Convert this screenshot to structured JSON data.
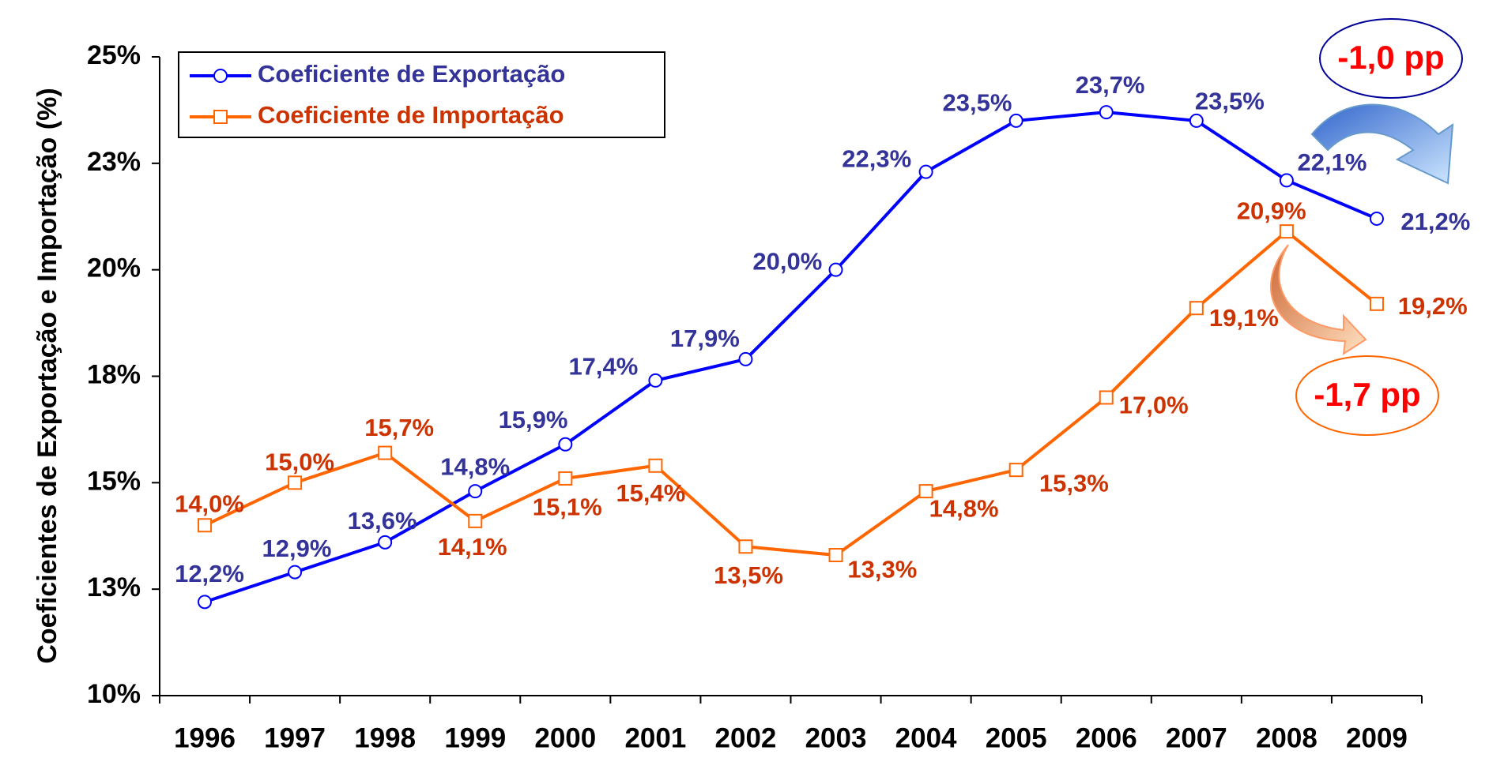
{
  "chart_data": {
    "type": "line",
    "y_label": "Coeficientes de Exportação e Importação (%)",
    "categories": [
      "1996",
      "1997",
      "1998",
      "1999",
      "2000",
      "2001",
      "2002",
      "2003",
      "2004",
      "2005",
      "2006",
      "2007",
      "2008",
      "2009"
    ],
    "series": [
      {
        "name": "Coeficiente de Exportação",
        "color": "#0000ff",
        "label_color": "#333399",
        "values": [
          12.2,
          12.9,
          13.6,
          14.8,
          15.9,
          17.4,
          17.9,
          20.0,
          22.3,
          23.5,
          23.7,
          23.5,
          22.1,
          21.2
        ],
        "value_labels": [
          "12,2%",
          "12,9%",
          "13,6%",
          "14,8%",
          "15,9%",
          "17,4%",
          "17,9%",
          "20,0%",
          "22,3%",
          "23,5%",
          "23,7%",
          "23,5%",
          "22,1%",
          "21,2%"
        ]
      },
      {
        "name": "Coeficiente de Importação",
        "color": "#ff6600",
        "label_color": "#cc3300",
        "values": [
          14.0,
          15.0,
          15.7,
          14.1,
          15.1,
          15.4,
          13.5,
          13.3,
          14.8,
          15.3,
          17.0,
          19.1,
          20.9,
          19.2
        ],
        "value_labels": [
          "14,0%",
          "15,0%",
          "15,7%",
          "14,1%",
          "15,1%",
          "15,4%",
          "13,5%",
          "13,3%",
          "14,8%",
          "15,3%",
          "17,0%",
          "19,1%",
          "20,9%",
          "19,2%"
        ]
      }
    ],
    "ylim": [
      10,
      25
    ],
    "yticks": [
      {
        "value": 10,
        "label": "10%"
      },
      {
        "value": 12.5,
        "label": "13%"
      },
      {
        "value": 15,
        "label": "15%"
      },
      {
        "value": 17.5,
        "label": "18%"
      },
      {
        "value": 20,
        "label": "20%"
      },
      {
        "value": 22.5,
        "label": "23%"
      },
      {
        "value": 25,
        "label": "25%"
      }
    ],
    "legend": "top-left",
    "annotations": [
      "-1,0 pp",
      "-1,7 pp"
    ]
  }
}
